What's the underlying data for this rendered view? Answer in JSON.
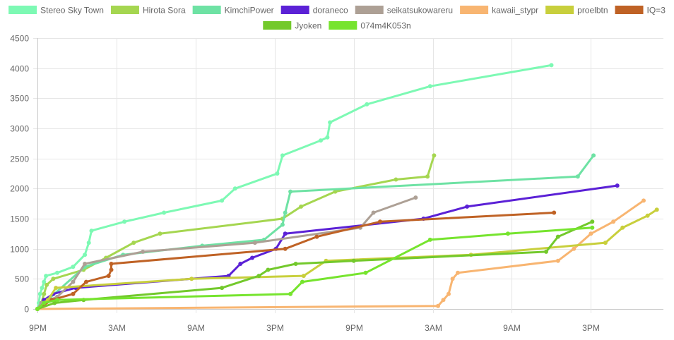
{
  "chart_data": {
    "type": "line",
    "title": "",
    "xlabel": "",
    "ylabel": "",
    "x_unit": "hours since 9PM",
    "xlim": [
      0,
      47.5
    ],
    "ylim": [
      0,
      4500
    ],
    "y_ticks": [
      0,
      500,
      1000,
      1500,
      2000,
      2500,
      3000,
      3500,
      4000,
      4500
    ],
    "x_ticks": [
      {
        "x": 0,
        "label": "9PM"
      },
      {
        "x": 6,
        "label": "3AM"
      },
      {
        "x": 12,
        "label": "9AM"
      },
      {
        "x": 18,
        "label": "3PM"
      },
      {
        "x": 24,
        "label": "9PM"
      },
      {
        "x": 30,
        "label": "3AM"
      },
      {
        "x": 36,
        "label": "9AM"
      },
      {
        "x": 42,
        "label": "3PM"
      }
    ],
    "grid": true,
    "legend_position": "top",
    "series": [
      {
        "name": "Stereo Sky Town",
        "color": "#7DF9B4",
        "points": [
          [
            0,
            0
          ],
          [
            0.1,
            100
          ],
          [
            0.2,
            250
          ],
          [
            0.35,
            350
          ],
          [
            0.5,
            450
          ],
          [
            0.65,
            550
          ],
          [
            1.5,
            600
          ],
          [
            2.7,
            700
          ],
          [
            3.6,
            900
          ],
          [
            3.9,
            1100
          ],
          [
            4.1,
            1300
          ],
          [
            6.6,
            1450
          ],
          [
            9.6,
            1600
          ],
          [
            14,
            1800
          ],
          [
            15,
            2000
          ],
          [
            18.2,
            2250
          ],
          [
            18.6,
            2550
          ],
          [
            21.5,
            2800
          ],
          [
            22,
            2850
          ],
          [
            22.2,
            3100
          ],
          [
            25,
            3400
          ],
          [
            29.8,
            3700
          ],
          [
            39,
            4050
          ]
        ]
      },
      {
        "name": "Hirota Sora",
        "color": "#A5D650",
        "points": [
          [
            0,
            0
          ],
          [
            0.3,
            100
          ],
          [
            0.5,
            250
          ],
          [
            0.7,
            400
          ],
          [
            1.2,
            500
          ],
          [
            3.5,
            650
          ],
          [
            5.2,
            850
          ],
          [
            7.3,
            1100
          ],
          [
            9.3,
            1250
          ],
          [
            18.6,
            1500
          ],
          [
            20,
            1700
          ],
          [
            22.6,
            1950
          ],
          [
            27.2,
            2150
          ],
          [
            29.6,
            2200
          ],
          [
            30.1,
            2550
          ]
        ]
      },
      {
        "name": "KimchiPower",
        "color": "#6EE2A4",
        "points": [
          [
            0,
            0
          ],
          [
            3.6,
            700
          ],
          [
            6.5,
            900
          ],
          [
            12.5,
            1050
          ],
          [
            17.2,
            1150
          ],
          [
            18.6,
            1400
          ],
          [
            18.8,
            1600
          ],
          [
            19.2,
            1950
          ],
          [
            41,
            2200
          ],
          [
            42.2,
            2550
          ]
        ]
      },
      {
        "name": "doraneco",
        "color": "#5B21D6",
        "points": [
          [
            0.5,
            150
          ],
          [
            1.2,
            250
          ],
          [
            2.9,
            350
          ],
          [
            14.5,
            550
          ],
          [
            15.4,
            750
          ],
          [
            16.3,
            850
          ],
          [
            18.1,
            1000
          ],
          [
            18.8,
            1250
          ],
          [
            29.3,
            1500
          ],
          [
            32.6,
            1700
          ],
          [
            44,
            2050
          ]
        ]
      },
      {
        "name": "seikatsukowareru",
        "color": "#ADA095",
        "points": [
          [
            0,
            0
          ],
          [
            0.3,
            100
          ],
          [
            1.5,
            200
          ],
          [
            2.7,
            450
          ],
          [
            3.6,
            750
          ],
          [
            8,
            950
          ],
          [
            16.5,
            1100
          ],
          [
            24.5,
            1350
          ],
          [
            25.5,
            1600
          ],
          [
            28.7,
            1850
          ]
        ]
      },
      {
        "name": "kawaii_stypr",
        "color": "#F8B571",
        "points": [
          [
            0,
            0
          ],
          [
            30.4,
            50
          ],
          [
            30.8,
            150
          ],
          [
            31.2,
            250
          ],
          [
            31.5,
            500
          ],
          [
            31.9,
            600
          ],
          [
            39.5,
            800
          ],
          [
            40.7,
            1000
          ],
          [
            42,
            1250
          ],
          [
            43.7,
            1450
          ],
          [
            46,
            1800
          ]
        ]
      },
      {
        "name": "proelbtn",
        "color": "#C8CF3C",
        "points": [
          [
            0,
            0
          ],
          [
            0.8,
            150
          ],
          [
            1.4,
            350
          ],
          [
            11.7,
            500
          ],
          [
            20.2,
            550
          ],
          [
            21.9,
            800
          ],
          [
            32.9,
            900
          ],
          [
            43.1,
            1100
          ],
          [
            44.4,
            1350
          ],
          [
            46.3,
            1550
          ],
          [
            47,
            1650
          ]
        ]
      },
      {
        "name": "IQ=3",
        "color": "#BF6225",
        "points": [
          [
            0,
            0
          ],
          [
            1.1,
            150
          ],
          [
            2.7,
            250
          ],
          [
            3.7,
            450
          ],
          [
            5.4,
            550
          ],
          [
            5.6,
            650
          ],
          [
            5.6,
            750
          ],
          [
            18.8,
            1000
          ],
          [
            21.2,
            1200
          ],
          [
            26,
            1450
          ],
          [
            39.2,
            1600
          ]
        ]
      },
      {
        "name": "Jyoken",
        "color": "#73C92C",
        "points": [
          [
            0,
            0
          ],
          [
            1.3,
            100
          ],
          [
            3.5,
            150
          ],
          [
            14,
            350
          ],
          [
            16.8,
            550
          ],
          [
            17.5,
            650
          ],
          [
            19.6,
            750
          ],
          [
            24,
            800
          ],
          [
            38.6,
            950
          ],
          [
            39.5,
            1200
          ],
          [
            42.1,
            1450
          ]
        ]
      },
      {
        "name": "074m4K053n",
        "color": "#76E42E",
        "points": [
          [
            0,
            0
          ],
          [
            0.5,
            100
          ],
          [
            1.5,
            150
          ],
          [
            19.2,
            250
          ],
          [
            20.1,
            450
          ],
          [
            24.9,
            600
          ],
          [
            29.8,
            1150
          ],
          [
            35.7,
            1250
          ],
          [
            42.1,
            1350
          ]
        ]
      }
    ]
  }
}
